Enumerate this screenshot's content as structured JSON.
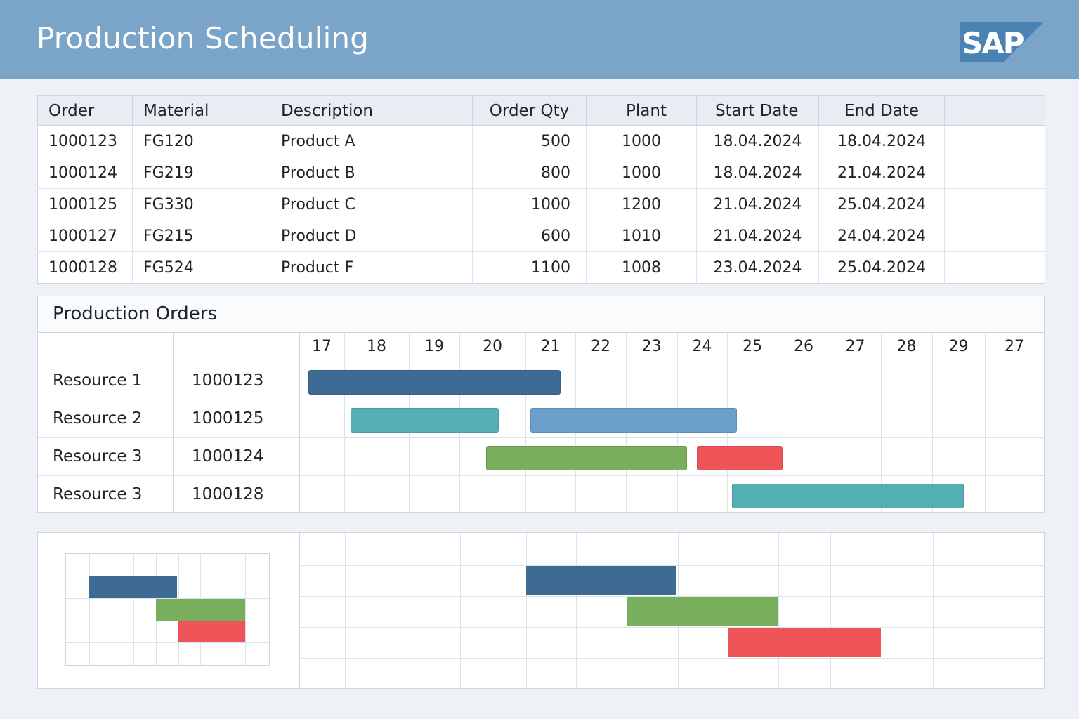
{
  "header": {
    "title": "Production Scheduling",
    "logo_text": "SAP",
    "background": "#7ba5c8"
  },
  "orders_table": {
    "columns": [
      "Order",
      "Material",
      "Description",
      "Order Qty",
      "Plant",
      "Start Date",
      "End Date"
    ],
    "rows": [
      [
        "1000123",
        "FG120",
        "Product A",
        "500",
        "1000",
        "18.04.2024",
        "18.04.2024"
      ],
      [
        "1000124",
        "FG219",
        "Product B",
        "800",
        "1000",
        "18.04.2024",
        "21.04.2024"
      ],
      [
        "1000125",
        "FG330",
        "Product C",
        "1000",
        "1200",
        "21.04.2024",
        "25.04.2024"
      ],
      [
        "1000127",
        "FG215",
        "Product D",
        "600",
        "1010",
        "21.04.2024",
        "24.04.2024"
      ],
      [
        "1000128",
        "FG524",
        "Product F",
        "1100",
        "1008",
        "23.04.2024",
        "25.04.2024"
      ]
    ]
  },
  "gantt": {
    "title": "Production Orders",
    "days": [
      "17",
      "18",
      "19",
      "20",
      "21",
      "22",
      "23",
      "24",
      "25",
      "26",
      "27",
      "28",
      "29",
      "27"
    ],
    "resources": [
      {
        "label": "Resource 1",
        "order": "1000123"
      },
      {
        "label": "Resource 2",
        "order": "1000125"
      },
      {
        "label": "Resource 3",
        "order": "1000124"
      },
      {
        "label": "Resource 3",
        "order": "1000128"
      }
    ],
    "bars": [
      {
        "row": 0,
        "start_day": 17.2,
        "end_day": 21.7,
        "color": "#3d6b93"
      },
      {
        "row": 1,
        "start_day": 18.1,
        "end_day": 20.6,
        "color": "#55b0b5"
      },
      {
        "row": 1,
        "start_day": 21.1,
        "end_day": 25.2,
        "color": "#6ba0cd"
      },
      {
        "row": 2,
        "start_day": 20.4,
        "end_day": 24.2,
        "color": "#79ae5c"
      },
      {
        "row": 2,
        "start_day": 24.4,
        "end_day": 26.1,
        "color": "#ef5459"
      },
      {
        "row": 3,
        "start_day": 25.1,
        "end_day": 29.6,
        "color": "#55b0b5"
      }
    ]
  },
  "colors": {
    "dark_blue": "#3d6b93",
    "teal": "#55b0b5",
    "light_blue": "#6ba0cd",
    "green": "#79ae5c",
    "red": "#ef5459"
  }
}
